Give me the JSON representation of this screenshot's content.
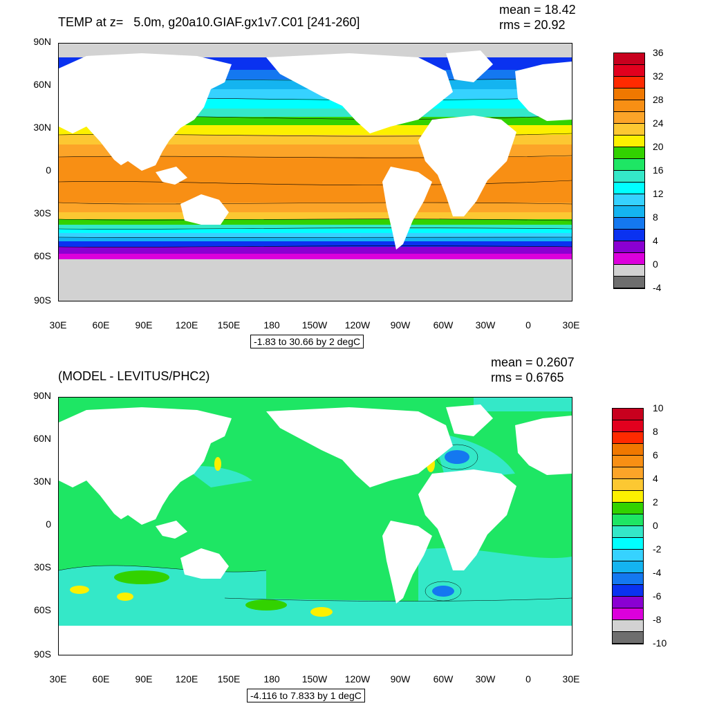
{
  "top": {
    "title": "TEMP at z=   5.0m, g20a10.GIAF.gx1v7.C01 [241-260]",
    "mean": "mean = 18.42",
    "rms": "rms = 20.92",
    "range_label": "-1.83 to 30.66 by 2 degC",
    "colorbar": {
      "labels": [
        "36",
        "32",
        "28",
        "24",
        "20",
        "16",
        "12",
        "8",
        "4",
        "0",
        "-4"
      ],
      "colors": [
        "#c8001e",
        "#e2001e",
        "#ff2a00",
        "#f07800",
        "#f88f14",
        "#fca428",
        "#fcc832",
        "#fcf000",
        "#32d200",
        "#1ee664",
        "#34e8c8",
        "#00ffff",
        "#36d2ff",
        "#14b4f0",
        "#1478f0",
        "#0a32f0",
        "#8a00d2",
        "#dc00dc",
        "#d2d2d2",
        "#6e6e6e"
      ]
    }
  },
  "bottom": {
    "title": "(MODEL - LEVITUS/PHC2)",
    "mean": "mean = 0.2607",
    "rms": "rms = 0.6765",
    "range_label": "-4.116 to 7.833 by 1 degC",
    "colorbar": {
      "labels": [
        "10",
        "8",
        "6",
        "4",
        "2",
        "0",
        "-2",
        "-4",
        "-6",
        "-8",
        "-10"
      ],
      "colors": [
        "#c8001e",
        "#e2001e",
        "#ff2a00",
        "#f07800",
        "#f88f14",
        "#fca428",
        "#fcc832",
        "#fcf000",
        "#32d200",
        "#1ee664",
        "#34e8c8",
        "#00ffff",
        "#36d2ff",
        "#14b4f0",
        "#1478f0",
        "#0a32f0",
        "#8a00d2",
        "#dc00dc",
        "#d2d2d2",
        "#6e6e6e"
      ]
    }
  },
  "axes": {
    "lat_labels": [
      "90N",
      "60N",
      "30N",
      "0",
      "30S",
      "60S",
      "90S"
    ],
    "lon_labels": [
      "30E",
      "60E",
      "90E",
      "120E",
      "150E",
      "180",
      "150W",
      "120W",
      "90W",
      "60W",
      "30W",
      "0",
      "30E"
    ]
  },
  "colors": {
    "land": "#ffffff",
    "ice": "#d2d2d2",
    "anomaly_base": "#1ee664",
    "anomaly_cool": "#34e8c8"
  }
}
